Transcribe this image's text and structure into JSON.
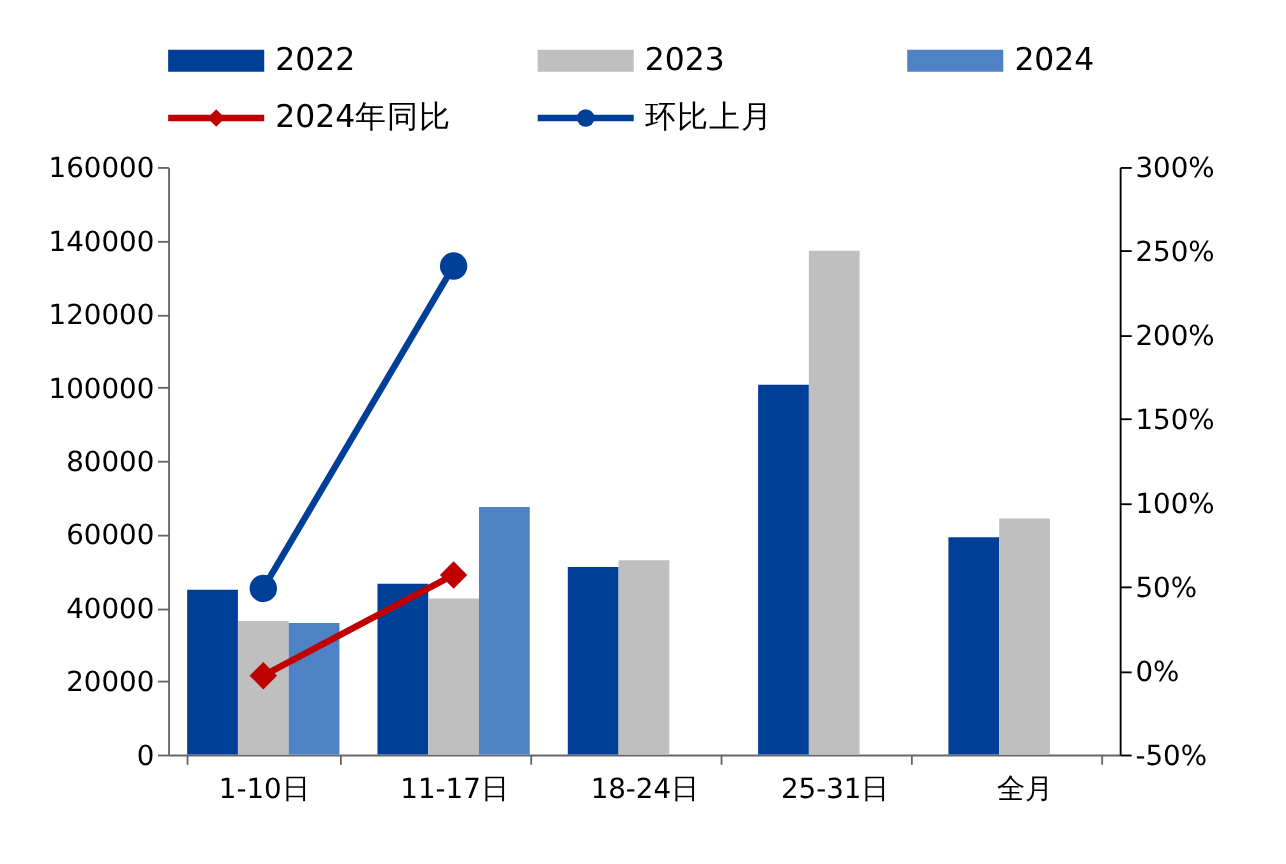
{
  "chart_data": {
    "type": "bar",
    "categories": [
      "1-10日",
      "11-17日",
      "18-24日",
      "25-31日",
      "全月"
    ],
    "series": [
      {
        "name": "2022",
        "color": "#003f98",
        "values": [
          44900,
          46500,
          51100,
          100700,
          59200
        ]
      },
      {
        "name": "2023",
        "color": "#bfbfbf",
        "values": [
          36400,
          42500,
          52900,
          137200,
          64300
        ]
      },
      {
        "name": "2024",
        "color": "#4f81c5",
        "values": [
          35800,
          67400,
          null,
          null,
          null
        ]
      },
      {
        "name": "2024年同比",
        "type": "line",
        "axis": "y2",
        "marker": "diamond",
        "color": "#c00000",
        "values": [
          -3,
          57,
          null,
          null,
          null
        ]
      },
      {
        "name": "环比上月",
        "type": "line",
        "axis": "y2",
        "marker": "circle",
        "color": "#003f98",
        "values": [
          49,
          241,
          null,
          null,
          null
        ]
      }
    ],
    "ylim": [
      0,
      160000
    ],
    "yticks": [
      0,
      20000,
      40000,
      60000,
      80000,
      100000,
      120000,
      140000,
      160000
    ],
    "y2lim": [
      -50,
      300
    ],
    "y2ticks": [
      {
        "value": -50,
        "label": "-50%"
      },
      {
        "value": 0,
        "label": "0%"
      },
      {
        "value": 50,
        "label": "50%"
      },
      {
        "value": 100,
        "label": "100%"
      },
      {
        "value": 150,
        "label": "150%"
      },
      {
        "value": 200,
        "label": "200%"
      },
      {
        "value": 250,
        "label": "250%"
      },
      {
        "value": 300,
        "label": "300%"
      }
    ],
    "legend": "top",
    "grid": false,
    "line_style": "solid"
  }
}
